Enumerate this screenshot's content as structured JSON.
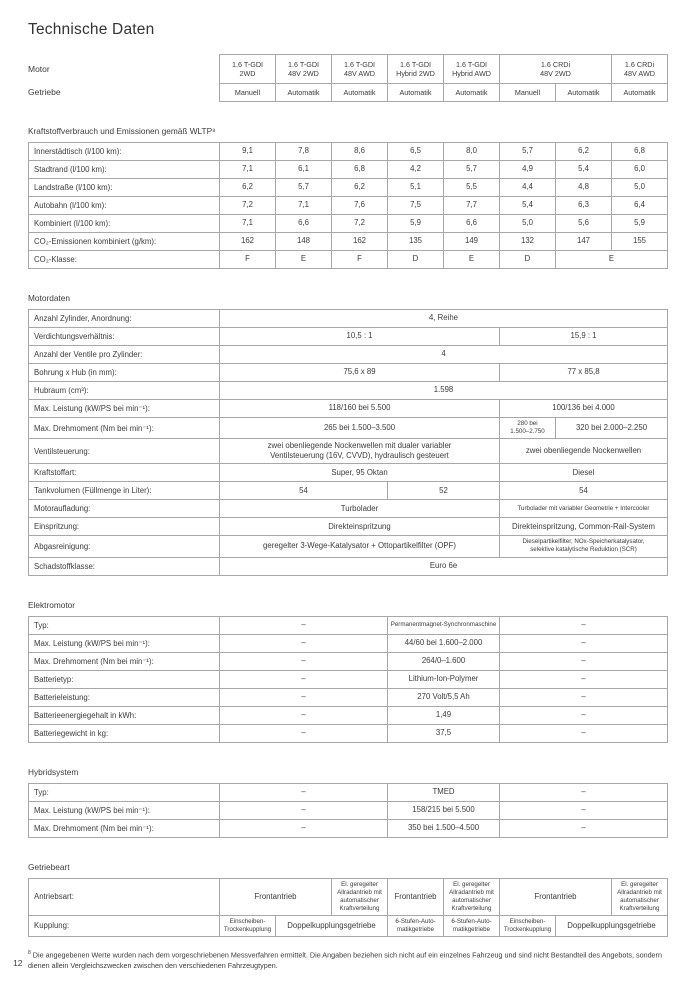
{
  "page": {
    "title": "Technische Daten",
    "number": "12"
  },
  "colors": {
    "text": "#3c3c3c",
    "border": "#a8a8a8",
    "background": "#ffffff"
  },
  "header": {
    "motor_label": "Motor",
    "getriebe_label": "Getriebe",
    "motor_cells": [
      {
        "text": "1.6 T-GDI\n2WD",
        "span": 1
      },
      {
        "text": "1.6 T-GDI\n48V 2WD",
        "span": 1
      },
      {
        "text": "1.6 T-GDI\n48V AWD",
        "span": 1
      },
      {
        "text": "1.6 T-GDI\nHybrid 2WD",
        "span": 1
      },
      {
        "text": "1.6 T-GDI\nHybrid AWD",
        "span": 1
      },
      {
        "text": "1.6 CRDi\n48V 2WD",
        "span": 2
      },
      {
        "text": "1.6 CRDi\n48V AWD",
        "span": 1
      }
    ],
    "getriebe_cells": [
      "Manuell",
      "Automatik",
      "Automatik",
      "Automatik",
      "Automatik",
      "Manuell",
      "Automatik",
      "Automatik"
    ]
  },
  "sections": [
    {
      "title": "Kraftstoffverbrauch und Emissionen gemäß WLTP⁸",
      "rows": [
        {
          "label": "Innerstädtisch (l/100 km):",
          "cells": [
            "9,1",
            "7,8",
            "8,6",
            "6,5",
            "8,0",
            "5,7",
            "6,2",
            "6,8"
          ]
        },
        {
          "label": "Stadtrand (l/100 km):",
          "cells": [
            "7,1",
            "6,1",
            "6,8",
            "4,2",
            "5,7",
            "4,9",
            "5,4",
            "6,0"
          ]
        },
        {
          "label": "Landstraße (l/100 km):",
          "cells": [
            "6,2",
            "5,7",
            "6,2",
            "5,1",
            "5,5",
            "4,4",
            "4,8",
            "5,0"
          ]
        },
        {
          "label": "Autobahn (l/100 km):",
          "cells": [
            "7,2",
            "7,1",
            "7,6",
            "7,5",
            "7,7",
            "5,4",
            "6,3",
            "6,4"
          ]
        },
        {
          "label": "Kombiniert (l/100 km):",
          "cells": [
            "7,1",
            "6,6",
            "7,2",
            "5,9",
            "6,6",
            "5,0",
            "5,6",
            "5,9"
          ]
        },
        {
          "label": "CO₂-Emissionen kombiniert (g/km):",
          "cells": [
            "162",
            "148",
            "162",
            "135",
            "149",
            "132",
            "147",
            "155"
          ]
        },
        {
          "label": "CO₂-Klasse:",
          "cells": [
            "F",
            "E",
            "F",
            "D",
            "E",
            "D",
            {
              "text": "E",
              "span": 2
            }
          ]
        }
      ]
    },
    {
      "title": "Motordaten",
      "rows": [
        {
          "label": "Anzahl Zylinder, Anordnung:",
          "cells": [
            {
              "text": "4, Reihe",
              "span": 8
            }
          ]
        },
        {
          "label": "Verdichtungsverhältnis:",
          "cells": [
            {
              "text": "10,5 : 1",
              "span": 5
            },
            {
              "text": "15,9 : 1",
              "span": 3
            }
          ]
        },
        {
          "label": "Anzahl der Ventile pro Zylinder:",
          "cells": [
            {
              "text": "4",
              "span": 8
            }
          ]
        },
        {
          "label": "Bohrung x Hub (in mm):",
          "cells": [
            {
              "text": "75,6 x 89",
              "span": 5
            },
            {
              "text": "77 x 85,8",
              "span": 3
            }
          ]
        },
        {
          "label": "Hubraum (cm³):",
          "cells": [
            {
              "text": "1.598",
              "span": 8
            }
          ]
        },
        {
          "label": "Max. Leistung (kW/PS bei min⁻¹):",
          "cells": [
            {
              "text": "118/160 bei 5.500",
              "span": 5
            },
            {
              "text": "100/136 bei 4.000",
              "span": 3
            }
          ]
        },
        {
          "label": "Max. Drehmoment (Nm bei min⁻¹):",
          "cells": [
            {
              "text": "265 bei 1.500–3.500",
              "span": 5
            },
            {
              "text": "280 bei\n1.500–2.750",
              "span": 1,
              "small": true
            },
            {
              "text": "320 bei 2.000–2.250",
              "span": 2
            }
          ]
        },
        {
          "label": "Ventilsteuerung:",
          "cells": [
            {
              "text": "zwei obenliegende Nockenwellen mit dualer variabler\nVentilsteuerung (16V, CVVD), hydraulisch gesteuert",
              "span": 5
            },
            {
              "text": "zwei obenliegende Nockenwellen",
              "span": 3
            }
          ]
        },
        {
          "label": "Kraftstoffart:",
          "cells": [
            {
              "text": "Super, 95 Oktan",
              "span": 5
            },
            {
              "text": "Diesel",
              "span": 3
            }
          ]
        },
        {
          "label": "Tankvolumen (Füllmenge in Liter):",
          "cells": [
            {
              "text": "54",
              "span": 3
            },
            {
              "text": "52",
              "span": 2
            },
            {
              "text": "54",
              "span": 3
            }
          ]
        },
        {
          "label": "Motoraufladung:",
          "cells": [
            {
              "text": "Turbolader",
              "span": 5
            },
            {
              "text": "Turbolader mit variabler Geometrie + Intercooler",
              "span": 3,
              "small": true
            }
          ]
        },
        {
          "label": "Einspritzung:",
          "cells": [
            {
              "text": "Direkteinspritzung",
              "span": 5
            },
            {
              "text": "Direkteinspritzung, Common-Rail-System",
              "span": 3
            }
          ]
        },
        {
          "label": "Abgasreinigung:",
          "cells": [
            {
              "text": "geregelter 3-Wege-Katalysator + Ottopartikelfilter (OPF)",
              "span": 5
            },
            {
              "text": "Dieselpartikelfilter, NOx-Speicherkatalysator,\nselektive katalytische Reduktion (SCR)",
              "span": 3,
              "small": true
            }
          ]
        },
        {
          "label": "Schadstoffklasse:",
          "cells": [
            {
              "text": "Euro 6e",
              "span": 8
            }
          ]
        }
      ]
    },
    {
      "title": "Elektromotor",
      "rows": [
        {
          "label": "Typ:",
          "cells": [
            {
              "text": "–",
              "span": 3
            },
            {
              "text": "Permanentmagnet-Synchronmaschine",
              "span": 2,
              "small": true
            },
            {
              "text": "–",
              "span": 3
            }
          ]
        },
        {
          "label": "Max. Leistung (kW/PS bei min⁻¹):",
          "cells": [
            {
              "text": "–",
              "span": 3
            },
            {
              "text": "44/60 bei 1.600–2.000",
              "span": 2
            },
            {
              "text": "–",
              "span": 3
            }
          ]
        },
        {
          "label": "Max. Drehmoment (Nm bei min⁻¹):",
          "cells": [
            {
              "text": "–",
              "span": 3
            },
            {
              "text": "264/0–1.600",
              "span": 2
            },
            {
              "text": "–",
              "span": 3
            }
          ]
        },
        {
          "label": "Batterietyp:",
          "cells": [
            {
              "text": "–",
              "span": 3
            },
            {
              "text": "Lithium-Ion-Polymer",
              "span": 2
            },
            {
              "text": "–",
              "span": 3
            }
          ]
        },
        {
          "label": "Batterieleistung:",
          "cells": [
            {
              "text": "–",
              "span": 3
            },
            {
              "text": "270 Volt/5,5 Ah",
              "span": 2
            },
            {
              "text": "–",
              "span": 3
            }
          ]
        },
        {
          "label": "Batterieenergiegehalt in kWh:",
          "cells": [
            {
              "text": "–",
              "span": 3
            },
            {
              "text": "1,49",
              "span": 2
            },
            {
              "text": "–",
              "span": 3
            }
          ]
        },
        {
          "label": "Batteriegewicht in kg:",
          "cells": [
            {
              "text": "–",
              "span": 3
            },
            {
              "text": "37,5",
              "span": 2
            },
            {
              "text": "–",
              "span": 3
            }
          ]
        }
      ]
    },
    {
      "title": "Hybridsystem",
      "rows": [
        {
          "label": "Typ:",
          "cells": [
            {
              "text": "–",
              "span": 3
            },
            {
              "text": "TMED",
              "span": 2
            },
            {
              "text": "–",
              "span": 3
            }
          ]
        },
        {
          "label": "Max. Leistung (kW/PS bei min⁻¹):",
          "cells": [
            {
              "text": "–",
              "span": 3
            },
            {
              "text": "158/215 bei 5.500",
              "span": 2
            },
            {
              "text": "–",
              "span": 3
            }
          ]
        },
        {
          "label": "Max. Drehmoment (Nm bei min⁻¹):",
          "cells": [
            {
              "text": "–",
              "span": 3
            },
            {
              "text": "350 bei 1.500–4.500",
              "span": 2
            },
            {
              "text": "–",
              "span": 3
            }
          ]
        }
      ]
    },
    {
      "title": "Getriebeart",
      "rows": [
        {
          "label": "Antriebsart:",
          "cells": [
            {
              "text": "Frontantrieb",
              "span": 2
            },
            {
              "text": "El. geregelter\nAllradantrieb mit\nautomatischer\nKraftverteilung",
              "span": 1,
              "small": true
            },
            {
              "text": "Frontantrieb",
              "span": 1
            },
            {
              "text": "El. geregelter\nAllradantrieb mit\nautomatischer\nKraftverteilung",
              "span": 1,
              "small": true
            },
            {
              "text": "Frontantrieb",
              "span": 2
            },
            {
              "text": "El. geregelter\nAllradantrieb mit\nautomatischer\nKraftverteilung",
              "span": 1,
              "small": true
            }
          ]
        },
        {
          "label": "Kupplung:",
          "cells": [
            {
              "text": "Einscheiben-\nTrockenkupplung",
              "span": 1,
              "small": true
            },
            {
              "text": "Doppelkupplungsgetriebe",
              "span": 2
            },
            {
              "text": "6-Stufen-Auto-\nmatikgetriebe",
              "span": 1,
              "small": true
            },
            {
              "text": "6-Stufen-Auto-\nmatikgetriebe",
              "span": 1,
              "small": true
            },
            {
              "text": "Einscheiben-\nTrockenkupplung",
              "span": 1,
              "small": true
            },
            {
              "text": "Doppelkupplungsgetriebe",
              "span": 2
            }
          ]
        }
      ]
    }
  ],
  "footnote": {
    "marker": "8",
    "text": "Die angegebenen Werte wurden nach dem vorgeschriebenen Messverfahren ermittelt. Die Angaben beziehen sich nicht auf ein einzelnes Fahrzeug und sind nicht Bestandteil des Angebots, sondern dienen allein Vergleichszwecken zwischen den verschiedenen Fahrzeugtypen."
  }
}
